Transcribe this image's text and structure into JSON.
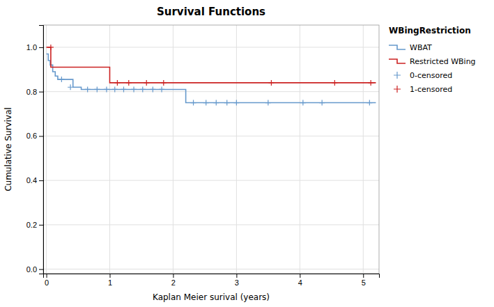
{
  "chart_data": {
    "type": "step",
    "title": "Survival Functions",
    "x_label": "Kaplan Meier surival (years)",
    "y_label": "Cumulative Survival",
    "legend_title": "WBingRestriction",
    "xlim": [
      -0.05,
      5.25
    ],
    "ylim": [
      -0.02,
      1.1
    ],
    "xticks": [
      0,
      1,
      2,
      3,
      4,
      5
    ],
    "yticks": [
      {
        "value": 0.0,
        "label": "0.0"
      },
      0.2,
      0.4,
      0.6,
      0.8,
      {
        "value": 1.0,
        "label": "1.0"
      }
    ],
    "grid": true,
    "legend": "right",
    "series": [
      {
        "name": "WBAT",
        "type": "step",
        "color": "#6699CC",
        "x": [
          0.0,
          0.03,
          0.06,
          0.1,
          0.14,
          0.18,
          0.22,
          0.3,
          0.42,
          0.55,
          1.0,
          2.1,
          2.2,
          5.2
        ],
        "values": [
          0.97,
          0.94,
          0.92,
          0.89,
          0.87,
          0.855,
          0.855,
          0.855,
          0.82,
          0.81,
          0.81,
          0.81,
          0.75,
          0.75
        ]
      },
      {
        "name": "Restricted WBing",
        "type": "step",
        "color": "#CC2222",
        "x": [
          0.0,
          0.06,
          0.07,
          0.45,
          1.0,
          5.2
        ],
        "values": [
          1.0,
          1.0,
          0.91,
          0.91,
          0.84,
          0.84
        ]
      },
      {
        "name": "0-censored",
        "type": "scatter",
        "marker": "+",
        "color": "#6699CC",
        "x": [
          0.24,
          0.38,
          0.65,
          0.8,
          0.95,
          1.08,
          1.22,
          1.38,
          1.52,
          1.68,
          1.82,
          2.32,
          2.52,
          2.68,
          2.85,
          3.0,
          3.5,
          4.05,
          4.35,
          5.1
        ],
        "values": [
          0.855,
          0.82,
          0.81,
          0.81,
          0.81,
          0.81,
          0.81,
          0.81,
          0.81,
          0.81,
          0.81,
          0.75,
          0.75,
          0.75,
          0.75,
          0.75,
          0.75,
          0.75,
          0.75,
          0.75
        ]
      },
      {
        "name": "1-censored",
        "type": "scatter",
        "marker": "+",
        "color": "#CC2222",
        "x": [
          0.07,
          1.12,
          1.3,
          1.58,
          1.85,
          3.55,
          4.55,
          5.12
        ],
        "values": [
          1.0,
          0.84,
          0.84,
          0.84,
          0.84,
          0.84,
          0.84,
          0.84
        ]
      }
    ]
  }
}
